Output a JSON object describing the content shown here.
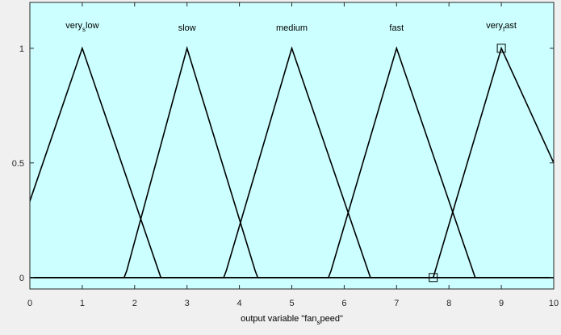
{
  "chart_data": {
    "type": "line",
    "title": "",
    "xlabel": "output variable \"fan_speed\"",
    "xlabel_parts": [
      "output variable \"fan",
      "s",
      "peed\""
    ],
    "ylabel": "",
    "xlim": [
      0,
      10
    ],
    "ylim": [
      -0.05,
      1.2
    ],
    "x_ticks": [
      "0",
      "1",
      "2",
      "3",
      "4",
      "5",
      "6",
      "7",
      "8",
      "9",
      "10"
    ],
    "y_ticks": [
      {
        "value": 0,
        "label": "0"
      },
      {
        "value": 0.5,
        "label": "0.5"
      },
      {
        "value": 1,
        "label": "1"
      }
    ],
    "grid": false,
    "background_color": "#ccffff",
    "line_color": "#000000",
    "series": [
      {
        "name": "very_slow",
        "label_parts": [
          "very",
          "s",
          "low"
        ],
        "x": [
          -0.5,
          1,
          2.5,
          10
        ],
        "y": [
          0,
          1,
          0,
          0
        ]
      },
      {
        "name": "slow",
        "label_parts": [
          "slow",
          "",
          ""
        ],
        "x": [
          0,
          1.8,
          1.85,
          3,
          4.3,
          4.35,
          10
        ],
        "y": [
          0,
          0,
          0.03,
          1,
          0.03,
          0,
          0
        ]
      },
      {
        "name": "medium",
        "label_parts": [
          "medium",
          "",
          ""
        ],
        "x": [
          0,
          3.7,
          3.75,
          5,
          6.5,
          10
        ],
        "y": [
          0,
          0,
          0.03,
          1,
          0,
          0
        ]
      },
      {
        "name": "fast",
        "label_parts": [
          "fast",
          "",
          ""
        ],
        "x": [
          0,
          5.7,
          5.75,
          7,
          8.5,
          10
        ],
        "y": [
          0,
          0,
          0.03,
          1,
          0,
          0
        ]
      },
      {
        "name": "very_fast",
        "label_parts": [
          "very",
          "f",
          "ast"
        ],
        "x": [
          0,
          7.7,
          9,
          10
        ],
        "y": [
          0,
          0,
          1,
          0.5
        ]
      }
    ],
    "markers": [
      {
        "x": 9,
        "y": 1,
        "shape": "square"
      },
      {
        "x": 7.7,
        "y": 0,
        "shape": "square"
      }
    ]
  }
}
